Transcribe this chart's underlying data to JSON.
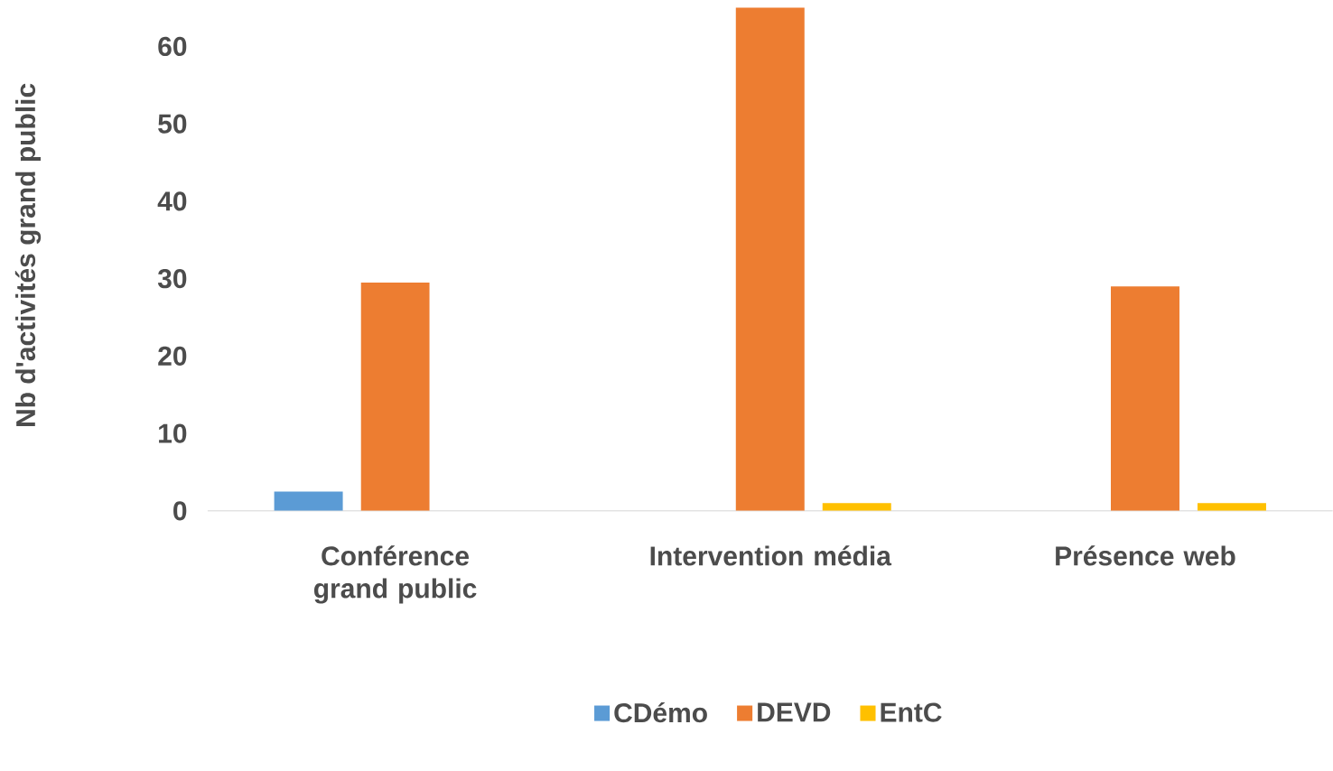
{
  "chart_data": {
    "type": "bar",
    "ylabel": "Nb d'activités grand public",
    "categories": [
      "Conférence grand public",
      "Intervention média",
      "Présence web"
    ],
    "series": [
      {
        "name": "CDémo",
        "color": "#5b9bd5",
        "values": [
          2.5,
          0,
          0
        ]
      },
      {
        "name": "DEVD",
        "color": "#ed7d31",
        "values": [
          29.5,
          65,
          29
        ]
      },
      {
        "name": "EntC",
        "color": "#ffc000",
        "values": [
          0,
          1,
          1
        ]
      }
    ],
    "ylim": [
      0,
      66
    ],
    "yticks": [
      0,
      10,
      20,
      30,
      40,
      50,
      60
    ],
    "legend": "bottom",
    "grid": false
  }
}
